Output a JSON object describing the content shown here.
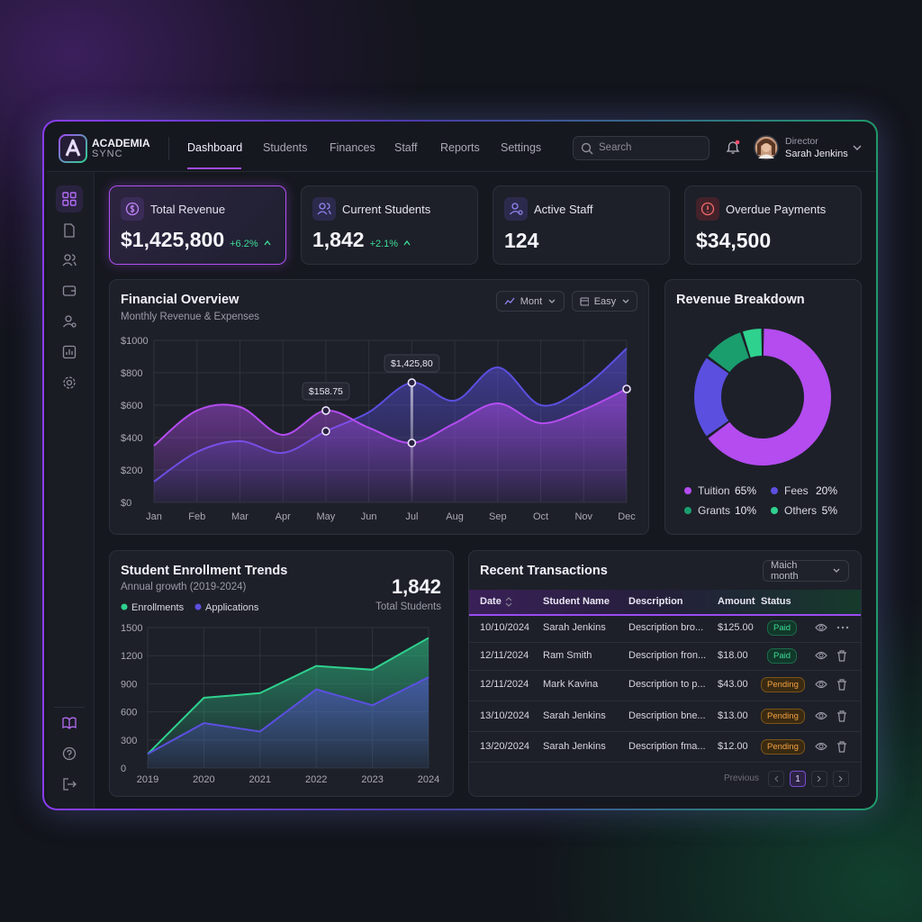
{
  "header": {
    "brand": "ACADEMIA",
    "brand_sub": "SYNC",
    "nav": [
      "Dashboard",
      "Students",
      "Finances",
      "Staff",
      "Reports",
      "Settings"
    ],
    "search_placeholder": "Search",
    "user_role": "Director",
    "user_name": "Sarah Jenkins"
  },
  "kpis": [
    {
      "label": "Total Revenue",
      "value": "$1,425,800",
      "change": "+6.2%"
    },
    {
      "label": "Current Students",
      "value": "1,842",
      "change": "+2.1%"
    },
    {
      "label": "Active Staff",
      "value": "124"
    },
    {
      "label": "Overdue Payments",
      "value": "$34,500"
    }
  ],
  "chart_data": [
    {
      "type": "area",
      "title": "Financial Overview",
      "subtitle": "Monthly Revenue & Expenses",
      "controls": [
        "Mont",
        "Easy"
      ],
      "categories": [
        "Jan",
        "Feb",
        "Mar",
        "Apr",
        "May",
        "Jun",
        "Jul",
        "Aug",
        "Sep",
        "Oct",
        "Nov",
        "Dec"
      ],
      "series": [
        {
          "color": "#b44cf0",
          "values": [
            350,
            567,
            589,
            417,
            567,
            461,
            367,
            489,
            611,
            489,
            572,
            700
          ]
        },
        {
          "color": "#5b4fe0",
          "values": [
            128,
            311,
            378,
            306,
            439,
            556,
            739,
            628,
            833,
            600,
            711,
            950
          ]
        }
      ],
      "ylim": [
        0,
        1000
      ],
      "yticks": [
        {
          "value": 0,
          "label": "$0"
        },
        {
          "value": 200,
          "label": "$200"
        },
        {
          "value": 400,
          "label": "$400"
        },
        {
          "value": 600,
          "label": "$600"
        },
        {
          "value": 800,
          "label": "$800"
        },
        {
          "value": 1000,
          "label": "$1000"
        }
      ],
      "grid": true,
      "annotations": [
        {
          "text": "$158.75",
          "category": "May"
        },
        {
          "text": "$1,425,80",
          "category": "Jul"
        }
      ]
    },
    {
      "type": "donut",
      "title": "Revenue Breakdown",
      "categories": [
        "Tuition",
        "Fees",
        "Grants",
        "Others"
      ],
      "values": [
        65,
        20,
        10,
        5
      ],
      "value_labels": [
        "65%",
        "20%",
        "10%",
        "5%"
      ],
      "colors": [
        "#b44cf0",
        "#5b4fe0",
        "#1a9e6e",
        "#2fd18e"
      ]
    },
    {
      "type": "area",
      "title": "Student Enrollment Trends",
      "subtitle": "Annual growth (2019-2024)",
      "stat_value": "1,842",
      "stat_label": "Total Students",
      "x": [
        2019,
        2020,
        2021,
        2022,
        2023,
        2024
      ],
      "series": [
        {
          "name": "Enrollments",
          "color": "#2fd18e",
          "values": [
            150,
            750,
            800,
            1090,
            1050,
            1390
          ]
        },
        {
          "name": "Applications",
          "color": "#5b4fe0",
          "values": [
            150,
            480,
            390,
            840,
            670,
            970
          ]
        }
      ],
      "xlim": [
        2019,
        2024
      ],
      "xticks": [
        2019,
        2020,
        2021,
        2022,
        2023,
        2024
      ],
      "ylim": [
        0,
        1500
      ],
      "yticks": [
        0,
        300,
        600,
        900,
        1200,
        1500
      ],
      "grid": true
    }
  ],
  "transactions": {
    "title": "Recent Transactions",
    "filter": "Maich month",
    "columns": [
      "Date",
      "Student Name",
      "Description",
      "Amount",
      "Status"
    ],
    "rows": [
      [
        "10/10/2024",
        "Sarah Jenkins",
        "Description bro...",
        "$125.00",
        "Paid"
      ],
      [
        "12/11/2024",
        "Ram Smith",
        "Description fron...",
        "$18.00",
        "Paid"
      ],
      [
        "12/11/2024",
        "Mark Kavina",
        "Description to p...",
        "$43.00",
        "Pending"
      ],
      [
        "13/10/2024",
        "Sarah Jenkins",
        "Description bne...",
        "$13.00",
        "Pending"
      ],
      [
        "13/20/2024",
        "Sarah Jenkins",
        "Description fma...",
        "$12.00",
        "Pending"
      ]
    ],
    "pagination": {
      "previous": "Previous",
      "page": "1"
    }
  }
}
